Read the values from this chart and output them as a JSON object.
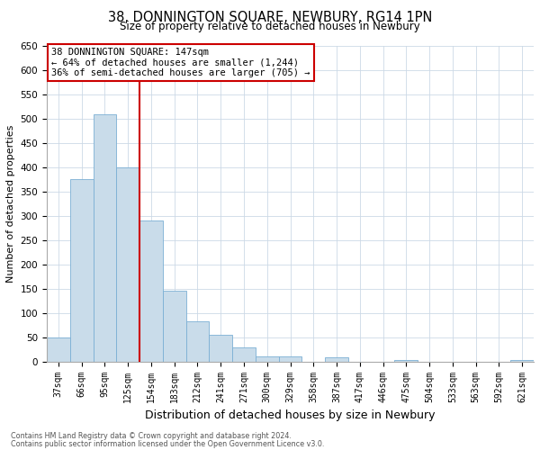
{
  "title": "38, DONNINGTON SQUARE, NEWBURY, RG14 1PN",
  "subtitle": "Size of property relative to detached houses in Newbury",
  "xlabel": "Distribution of detached houses by size in Newbury",
  "ylabel": "Number of detached properties",
  "categories": [
    "37sqm",
    "66sqm",
    "95sqm",
    "125sqm",
    "154sqm",
    "183sqm",
    "212sqm",
    "241sqm",
    "271sqm",
    "300sqm",
    "329sqm",
    "358sqm",
    "387sqm",
    "417sqm",
    "446sqm",
    "475sqm",
    "504sqm",
    "533sqm",
    "563sqm",
    "592sqm",
    "621sqm"
  ],
  "values": [
    50,
    375,
    510,
    400,
    290,
    145,
    82,
    55,
    30,
    10,
    10,
    0,
    8,
    0,
    0,
    4,
    0,
    0,
    0,
    0,
    4
  ],
  "bar_color": "#c9dcea",
  "bar_edge_color": "#7bafd4",
  "bar_width": 1.0,
  "ylim": [
    0,
    650
  ],
  "yticks": [
    0,
    50,
    100,
    150,
    200,
    250,
    300,
    350,
    400,
    450,
    500,
    550,
    600,
    650
  ],
  "vline_x": 3.5,
  "vline_color": "#cc0000",
  "annotation_title": "38 DONNINGTON SQUARE: 147sqm",
  "annotation_line1": "← 64% of detached houses are smaller (1,244)",
  "annotation_line2": "36% of semi-detached houses are larger (705) →",
  "annotation_box_color": "#ffffff",
  "annotation_box_edge": "#cc0000",
  "footer1": "Contains HM Land Registry data © Crown copyright and database right 2024.",
  "footer2": "Contains public sector information licensed under the Open Government Licence v3.0.",
  "background_color": "#ffffff",
  "grid_color": "#ccd9e6"
}
